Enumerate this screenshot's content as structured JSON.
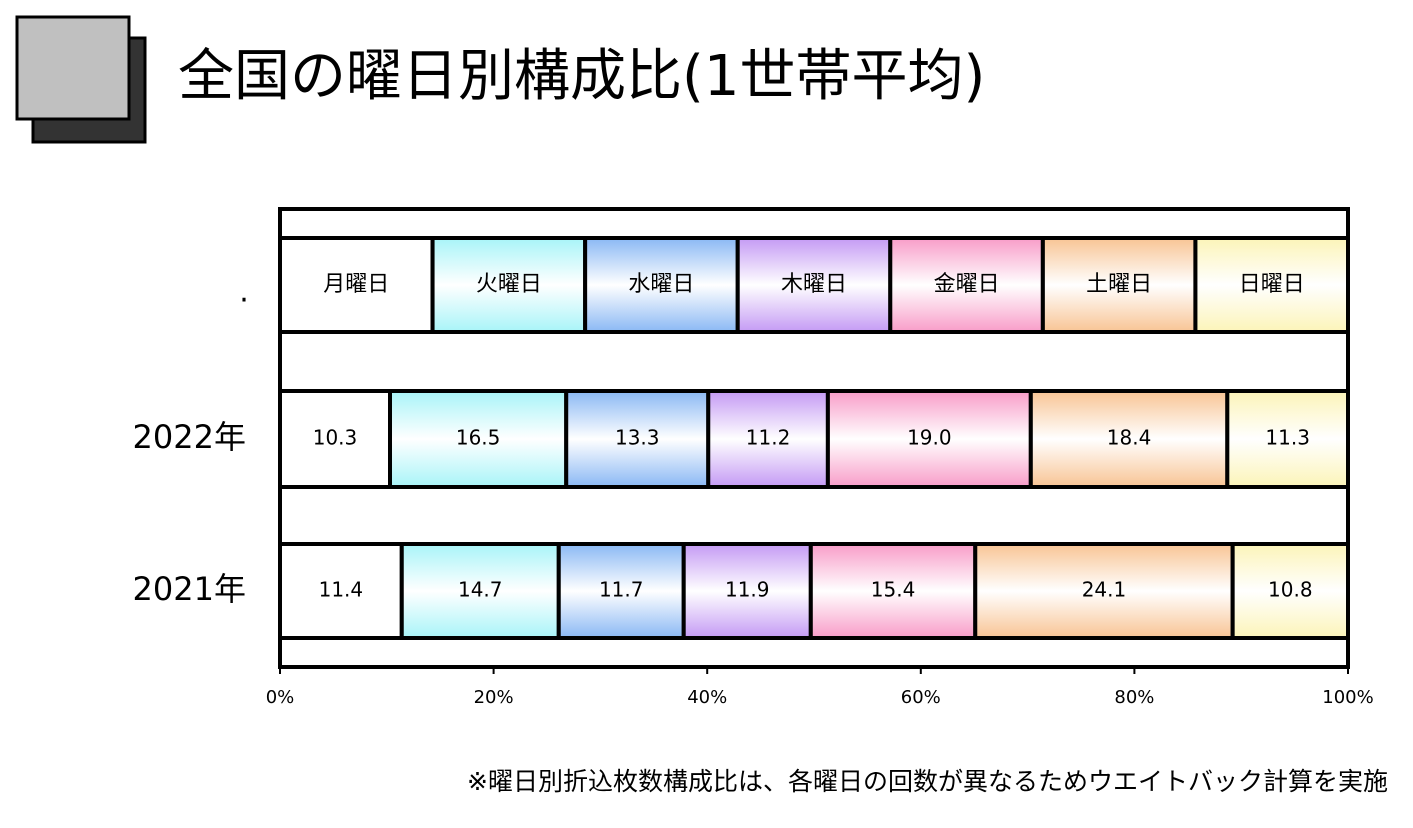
{
  "chart_data": {
    "type": "stacked-bar-percent",
    "title": "全国の曜日別構成比(1世帯平均)",
    "note": "※曜日別折込枚数構成比は、各曜日の回数が異なるためウエイトバック計算を実施",
    "legend_label": ".",
    "categories": [
      "2022年",
      "2021年"
    ],
    "series": [
      {
        "name": "月曜日",
        "color": "#ffffff",
        "values": [
          10.3,
          11.4
        ],
        "value_labels": [
          "10.3",
          "11.4"
        ]
      },
      {
        "name": "火曜日",
        "color": "#a8f4f8",
        "values": [
          16.5,
          14.7
        ],
        "value_labels": [
          "16.5",
          "14.7"
        ]
      },
      {
        "name": "水曜日",
        "color": "#8ab8f4",
        "values": [
          13.3,
          11.7
        ],
        "value_labels": [
          "13.3",
          "11.7"
        ]
      },
      {
        "name": "木曜日",
        "color": "#c49af4",
        "values": [
          11.2,
          11.9
        ],
        "value_labels": [
          "11.2",
          "11.9"
        ]
      },
      {
        "name": "金曜日",
        "color": "#f89cc8",
        "values": [
          19.0,
          15.4
        ],
        "value_labels": [
          "19.0",
          "15.4"
        ]
      },
      {
        "name": "土曜日",
        "color": "#f8c494",
        "values": [
          18.4,
          24.1
        ],
        "value_labels": [
          "18.4",
          "24.1"
        ]
      },
      {
        "name": "日曜日",
        "color": "#fcf4b8",
        "values": [
          11.3,
          10.8
        ],
        "value_labels": [
          "11.3",
          "10.8"
        ]
      }
    ],
    "xlim": [
      0,
      100
    ],
    "xticks": [
      {
        "value": 0,
        "label": "0%"
      },
      {
        "value": 20,
        "label": "20%"
      },
      {
        "value": 40,
        "label": "40%"
      },
      {
        "value": 60,
        "label": "60%"
      },
      {
        "value": 80,
        "label": "80%"
      },
      {
        "value": 100,
        "label": "100%"
      }
    ]
  }
}
